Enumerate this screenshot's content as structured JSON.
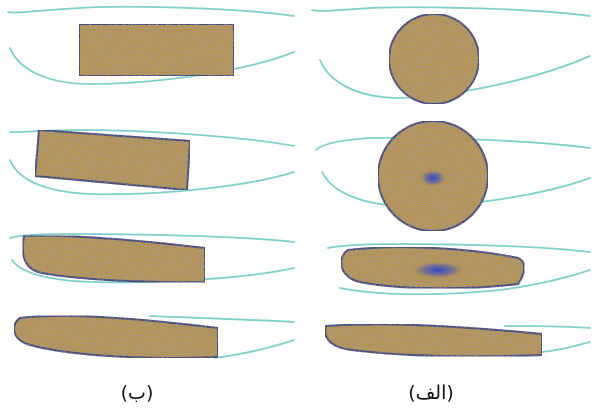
{
  "colors": {
    "background": "#ffffff",
    "airfoil_outline": "#7fcfca",
    "particle_fill": "#b8953a",
    "particle_speckle_dark": "#4a4f8a",
    "particle_speckle_light": "#d8b85a",
    "particle_edge": "#3d3f6e",
    "particle_core": "#3340b8",
    "caption_text": "#111111"
  },
  "panels": [
    {
      "caption": "(ب)",
      "column": "left",
      "particle_shapes": [
        "rectangle",
        "rectangle",
        "flattened-rectangle",
        "wedge"
      ]
    },
    {
      "caption": "(الف)",
      "column": "right",
      "particle_shapes": [
        "circle",
        "circle",
        "ellipse",
        "wedge"
      ]
    }
  ]
}
